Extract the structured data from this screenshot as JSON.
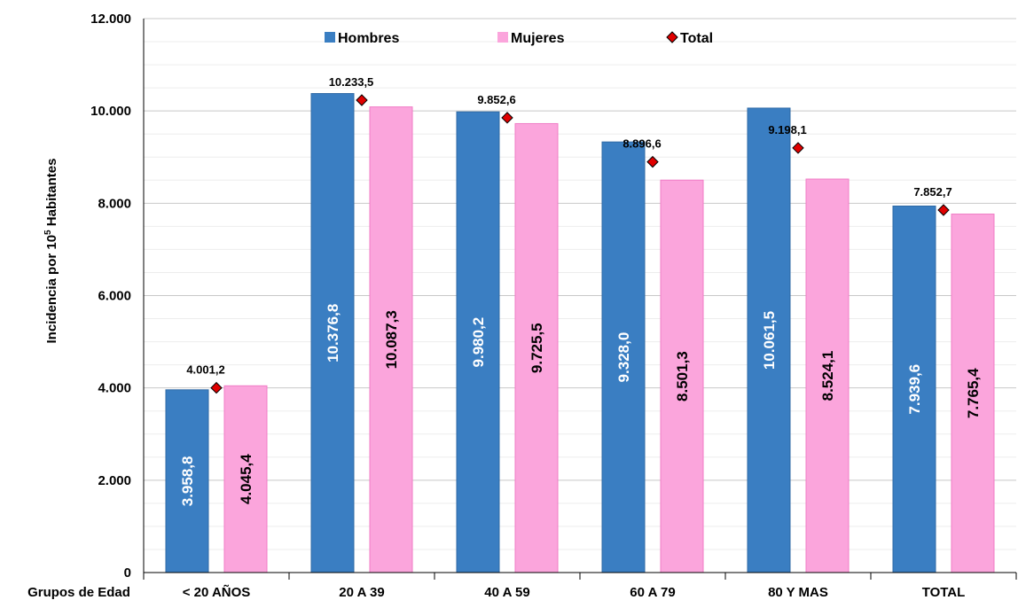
{
  "chart_data": {
    "type": "bar",
    "categories_label": "Grupos de Edad",
    "categories": [
      "< 20 AÑOS",
      "20 A 39",
      "40 A 59",
      "60 A 79",
      "80 Y MAS",
      "TOTAL"
    ],
    "series": [
      {
        "name": "Hombres",
        "type": "bar",
        "color": "#3A7EC2",
        "values": [
          3958.8,
          10376.8,
          9980.2,
          9328.0,
          10061.5,
          7939.6
        ],
        "labels": [
          "3.958,8",
          "10.376,8",
          "9.980,2",
          "9.328,0",
          "10.061,5",
          "7.939,6"
        ]
      },
      {
        "name": "Mujeres",
        "type": "bar",
        "color": "#FBA5DC",
        "values": [
          4045.4,
          10087.3,
          9725.5,
          8501.3,
          8524.1,
          7765.4
        ],
        "labels": [
          "4.045,4",
          "10.087,3",
          "9.725,5",
          "8.501,3",
          "8.524,1",
          "7.765,4"
        ]
      },
      {
        "name": "Total",
        "type": "marker",
        "color": "#E00000",
        "values": [
          4001.2,
          10233.5,
          9852.6,
          8896.6,
          9198.1,
          7852.7
        ],
        "labels": [
          "4.001,2",
          "10.233,5",
          "9.852,6",
          "8.896,6",
          "9.198,1",
          "7.852,7"
        ]
      }
    ],
    "ylabel_prefix": "Incidencia por 10",
    "ylabel_sup": "5",
    "ylabel_suffix": " Habitantes",
    "ylim": [
      0,
      12000
    ],
    "yticks": [
      0,
      2000,
      4000,
      6000,
      8000,
      10000,
      12000
    ],
    "ytick_labels": [
      "0",
      "2.000",
      "4.000",
      "6.000",
      "8.000",
      "10.000",
      "12.000"
    ],
    "grid": true,
    "legend_position": "top"
  }
}
